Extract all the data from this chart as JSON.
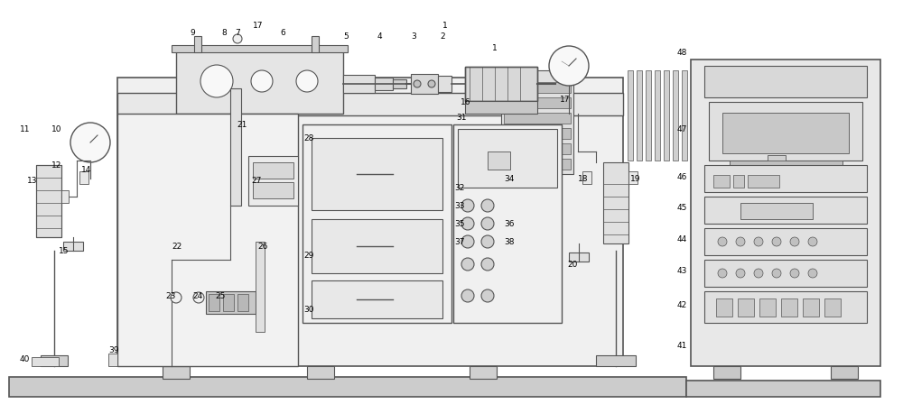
{
  "bg_color": "#ffffff",
  "line_color": "#555555",
  "label_color": "#000000",
  "fig_width": 10.0,
  "fig_height": 4.48,
  "dpi": 100
}
